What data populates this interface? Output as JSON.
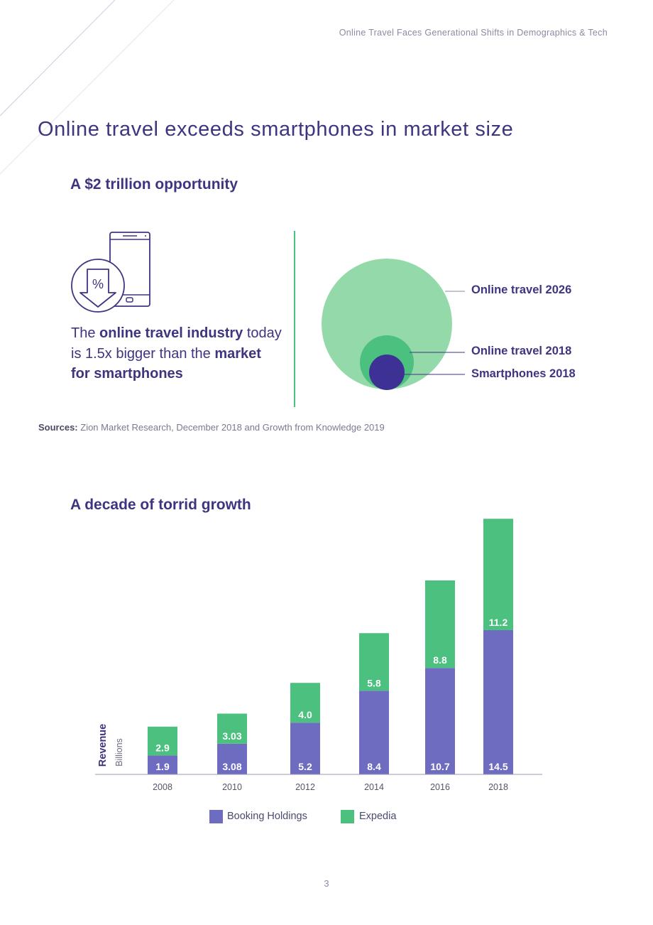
{
  "header": {
    "running_title": "Online Travel Faces Generational Shifts in Demographics & Tech"
  },
  "page_title": "Online travel exceeds smartphones in market size",
  "section1": {
    "heading": "A $2 trillion opportunity",
    "blurb": {
      "part1": "The ",
      "bold1": "online travel industry",
      "part2": " today is 1.5x bigger than the ",
      "bold2": "market for smartphones"
    },
    "bubbles": [
      {
        "label": "Online travel 2026",
        "color": "#94d9a9"
      },
      {
        "label": "Online travel 2018",
        "color": "#4cc07f"
      },
      {
        "label": "Smartphones 2018",
        "color": "#3e3196"
      }
    ],
    "icon": "phone-discount-icon"
  },
  "sources": {
    "label": "Sources:",
    "text": " Zion Market Research, December 2018 and Growth from Knowledge 2019"
  },
  "section2": {
    "heading": "A decade of torrid growth"
  },
  "chart_data": {
    "type": "bar",
    "stacked": true,
    "categories": [
      "2008",
      "2010",
      "2012",
      "2014",
      "2016",
      "2018"
    ],
    "series": [
      {
        "name": "Booking Holdings",
        "color": "#6e6cc0",
        "values": [
          1.9,
          3.08,
          5.2,
          8.4,
          10.7,
          14.5
        ],
        "labels": [
          "1.9",
          "3.08",
          "5.2",
          "8.4",
          "10.7",
          "14.5"
        ]
      },
      {
        "name": "Expedia",
        "color": "#4cc07f",
        "values": [
          2.9,
          3.03,
          4.0,
          5.8,
          8.8,
          11.2
        ],
        "labels": [
          "2.9",
          "3.03",
          "4.0",
          "5.8",
          "8.8",
          "11.2"
        ]
      }
    ],
    "ylabel": "Revenue",
    "ylabel_unit": "Billions",
    "legend": "bottom",
    "grid": false
  },
  "page_number": "3"
}
